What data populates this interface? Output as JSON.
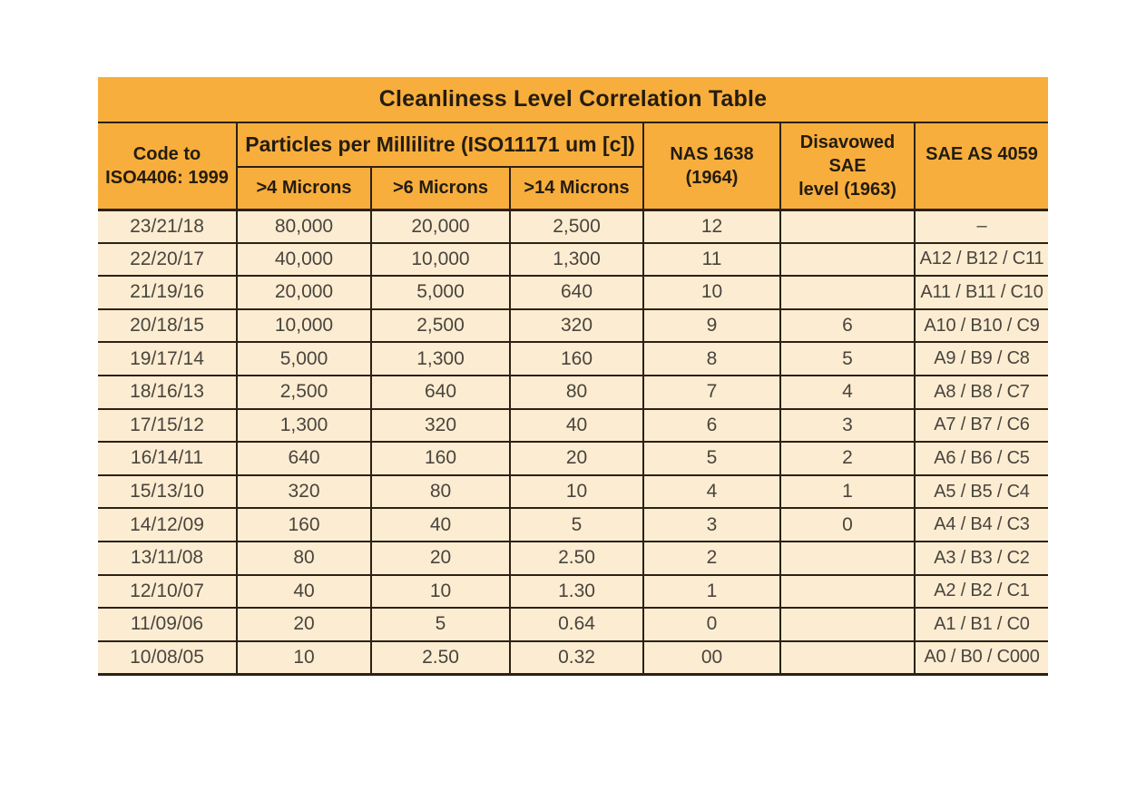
{
  "colors": {
    "header_bg": "#F8AE3C",
    "row_bg": "#FCEDD2",
    "border": "#2B2115",
    "header_text": "#231C10",
    "cell_text": "#4A443D",
    "page_bg": "#FFFFFF"
  },
  "chart_data": {
    "type": "table",
    "title": "Cleanliness Level Correlation Table",
    "headers": {
      "code": [
        "Code to",
        "ISO4406: 1999"
      ],
      "particles_group": "Particles per Millilitre (ISO11171 um [c])",
      "microns": [
        ">4 Microns",
        ">6 Microns",
        ">14 Microns"
      ],
      "nas": [
        "NAS 1638",
        "(1964)"
      ],
      "disavowed": [
        "Disavowed SAE",
        "level (1963)"
      ],
      "sae": [
        "SAE AS 4059"
      ]
    },
    "columns": [
      "Code to ISO4406: 1999",
      ">4 Microns",
      ">6 Microns",
      ">14 Microns",
      "NAS 1638 (1964)",
      "Disavowed SAE level (1963)",
      "SAE AS 4059"
    ],
    "rows": [
      [
        "23/21/18",
        "80,000",
        "20,000",
        "2,500",
        "12",
        "",
        "–"
      ],
      [
        "22/20/17",
        "40,000",
        "10,000",
        "1,300",
        "11",
        "",
        "A12 / B12 / C11"
      ],
      [
        "21/19/16",
        "20,000",
        "5,000",
        "640",
        "10",
        "",
        "A11 / B11 / C10"
      ],
      [
        "20/18/15",
        "10,000",
        "2,500",
        "320",
        "9",
        "6",
        "A10 / B10 / C9"
      ],
      [
        "19/17/14",
        "5,000",
        "1,300",
        "160",
        "8",
        "5",
        "A9 / B9 / C8"
      ],
      [
        "18/16/13",
        "2,500",
        "640",
        "80",
        "7",
        "4",
        "A8 / B8 / C7"
      ],
      [
        "17/15/12",
        "1,300",
        "320",
        "40",
        "6",
        "3",
        "A7 / B7 / C6"
      ],
      [
        "16/14/11",
        "640",
        "160",
        "20",
        "5",
        "2",
        "A6 / B6 / C5"
      ],
      [
        "15/13/10",
        "320",
        "80",
        "10",
        "4",
        "1",
        "A5 / B5 / C4"
      ],
      [
        "14/12/09",
        "160",
        "40",
        "5",
        "3",
        "0",
        "A4 / B4 / C3"
      ],
      [
        "13/11/08",
        "80",
        "20",
        "2.50",
        "2",
        "",
        "A3 / B3 / C2"
      ],
      [
        "12/10/07",
        "40",
        "10",
        "1.30",
        "1",
        "",
        "A2 / B2 / C1"
      ],
      [
        "11/09/06",
        "20",
        "5",
        "0.64",
        "0",
        "",
        "A1 / B1 / C0"
      ],
      [
        "10/08/05",
        "10",
        "2.50",
        "0.32",
        "00",
        "",
        "A0 / B0 / C000"
      ]
    ]
  }
}
